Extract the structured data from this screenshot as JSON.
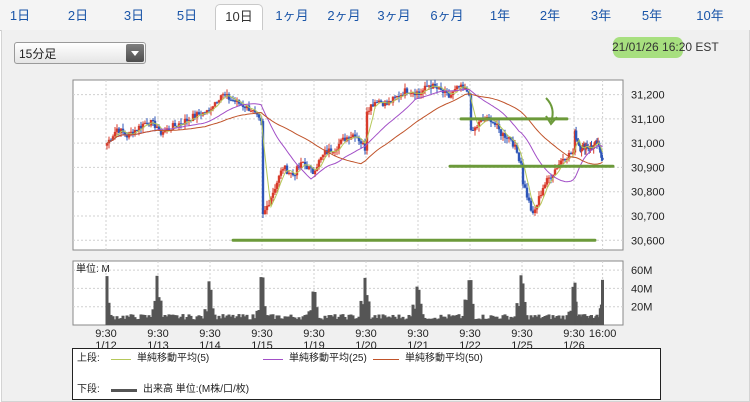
{
  "tabs": [
    {
      "label": "1日",
      "active": false
    },
    {
      "label": "2日",
      "active": false
    },
    {
      "label": "3日",
      "active": false
    },
    {
      "label": "5日",
      "active": false
    },
    {
      "label": "10日",
      "active": true
    },
    {
      "label": "1ヶ月",
      "active": false
    },
    {
      "label": "2ヶ月",
      "active": false
    },
    {
      "label": "3ヶ月",
      "active": false
    },
    {
      "label": "6ヶ月",
      "active": false
    },
    {
      "label": "1年",
      "active": false
    },
    {
      "label": "2年",
      "active": false
    },
    {
      "label": "3年",
      "active": false
    },
    {
      "label": "5年",
      "active": false
    },
    {
      "label": "10年",
      "active": false
    }
  ],
  "interval_select": {
    "value": "15分足"
  },
  "timestamp": "21/01/26 16:20 EST",
  "colors": {
    "up": "#d83b2b",
    "down": "#2f56b8",
    "ma5": "#b5c85a",
    "ma25": "#a24fc7",
    "ma50": "#c0532a",
    "annotation": "#6c9a3a",
    "volume": "#555555",
    "highlight": "#a7df7f"
  },
  "chart_data": {
    "type": "candlestick",
    "price": {
      "yticks": [
        "31,200",
        "31,100",
        "31,000",
        "30,900",
        "30,800",
        "30,700",
        "30,600"
      ],
      "ylim": [
        30560,
        31260
      ],
      "session_points": [
        [
          31000,
          31060,
          31030,
          31060,
          31090,
          31070
        ],
        [
          31040,
          31060,
          31080,
          31100,
          31120,
          31130
        ],
        [
          31150,
          31200,
          31180,
          31160,
          31140,
          31080
        ],
        [
          30700,
          30800,
          30900,
          30870,
          30920,
          30880
        ],
        [
          30900,
          30960,
          30980,
          31020,
          31040,
          30980
        ],
        [
          31140,
          31180,
          31160,
          31190,
          31220,
          31210
        ],
        [
          31200,
          31240,
          31220,
          31190,
          31230,
          31210
        ],
        [
          31040,
          31090,
          31100,
          31040,
          31020,
          30920
        ],
        [
          30840,
          30700,
          30820,
          30880,
          30940,
          30960
        ],
        [
          31040,
          30980,
          30990,
          30980,
          31000,
          30940
        ]
      ],
      "annotations": [
        {
          "type": "support",
          "value": 30905
        },
        {
          "type": "resistance",
          "value": 31100
        },
        {
          "type": "low_line",
          "value": 30600
        }
      ]
    },
    "volume": {
      "label": "単位: M",
      "yticks": [
        "60M",
        "40M",
        "20M"
      ],
      "ylim": [
        0,
        70
      ]
    },
    "x_axis": [
      {
        "time": "9:30",
        "date": "1/12"
      },
      {
        "time": "9:30",
        "date": "1/13"
      },
      {
        "time": "9:30",
        "date": "1/14"
      },
      {
        "time": "9:30",
        "date": "1/15"
      },
      {
        "time": "9:30",
        "date": "1/19"
      },
      {
        "time": "9:30",
        "date": "1/20"
      },
      {
        "time": "9:30",
        "date": "1/21"
      },
      {
        "time": "9:30",
        "date": "1/22"
      },
      {
        "time": "9:30",
        "date": "1/25"
      },
      {
        "time": "9:30",
        "date": "1/26"
      },
      {
        "time": "16:00",
        "date": ""
      }
    ]
  },
  "legend": {
    "upper_label": "上段:",
    "lower_label": "下段:",
    "items": [
      {
        "name": "単純移動平均(5)"
      },
      {
        "name": "単純移動平均(25)"
      },
      {
        "name": "単純移動平均(50)"
      }
    ],
    "volume_item": "出来高 単位:(M株/口/枚)"
  }
}
